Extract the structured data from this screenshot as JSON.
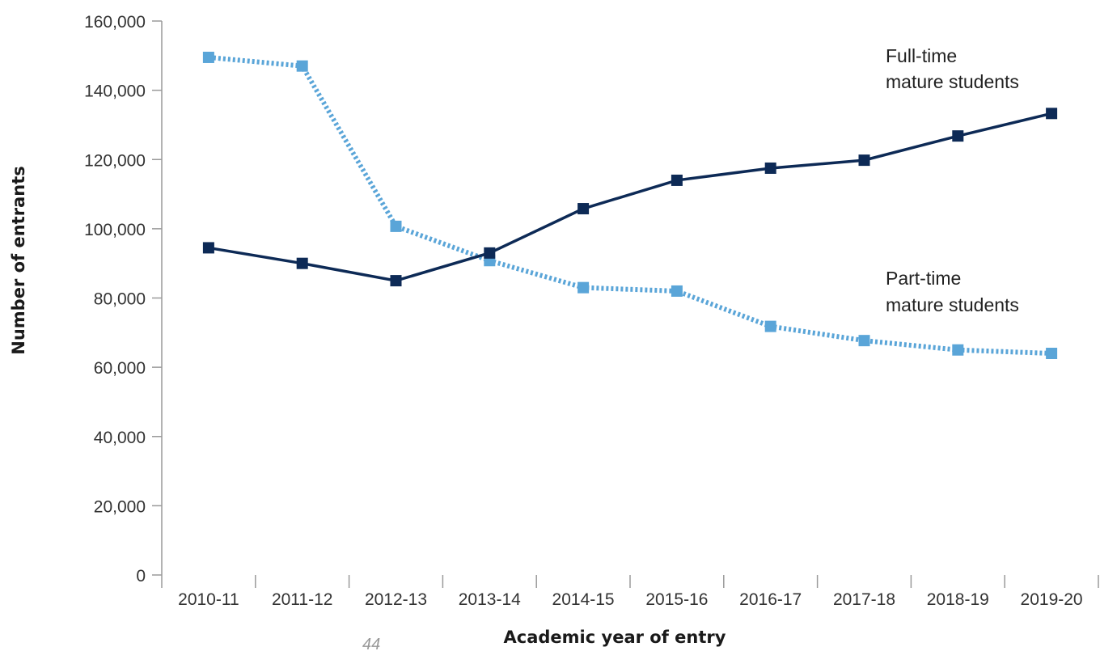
{
  "chart_data": {
    "type": "line",
    "title": "",
    "xlabel": "Academic year of entry",
    "ylabel": "Number of entrants",
    "categories": [
      "2010-11",
      "2011-12",
      "2012-13",
      "2013-14",
      "2014-15",
      "2015-16",
      "2016-17",
      "2017-18",
      "2018-19",
      "2019-20"
    ],
    "ylim": [
      0,
      160000
    ],
    "yticks": [
      0,
      20000,
      40000,
      60000,
      80000,
      100000,
      120000,
      140000,
      160000
    ],
    "ytick_labels": [
      "0",
      "20,000",
      "40,000",
      "60,000",
      "80,000",
      "100,000",
      "120,000",
      "140,000",
      "160,000"
    ],
    "grid": false,
    "series": [
      {
        "key": "full_time",
        "label_lines": [
          "Full-time",
          "mature students"
        ],
        "color": "#0d2a56",
        "line_style": "solid",
        "marker": "square",
        "values": [
          94500,
          90000,
          85000,
          93000,
          105800,
          114000,
          117500,
          119800,
          126800,
          133300
        ]
      },
      {
        "key": "part_time",
        "label_lines": [
          "Part-time",
          "mature students"
        ],
        "color": "#5aa5d8",
        "line_style": "dotted",
        "marker": "square",
        "values": [
          149500,
          147000,
          100700,
          90800,
          83000,
          82000,
          71800,
          67700,
          65000,
          64000
        ]
      }
    ],
    "stray_text": "44"
  }
}
